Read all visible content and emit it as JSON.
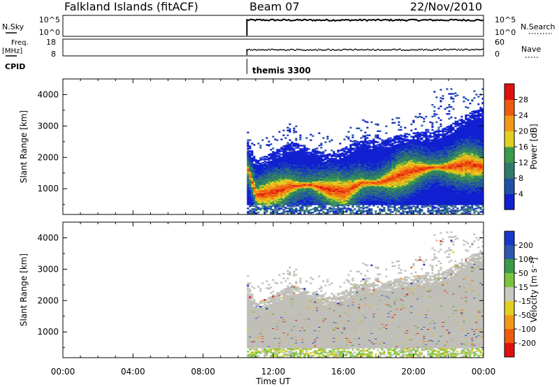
{
  "header": {
    "station": "Falkland Islands (fitACF)",
    "beam": "Beam 07",
    "date": "22/Nov/2010"
  },
  "nsky_panel": {
    "label": "N.Sky",
    "ticks_left": [
      "10^5",
      "10^0"
    ],
    "ticks_right": [
      "10^5",
      "10^0"
    ],
    "right_label": "N.Search"
  },
  "freq_panel": {
    "label_line1": "Freq.",
    "label_line2": "[MHz]",
    "ticks_left": [
      "18",
      "8"
    ],
    "ticks_right": [
      "60",
      "0"
    ],
    "right_label": "Nave"
  },
  "cpid": {
    "label": "CPID",
    "program": "themis 3300"
  },
  "chart_data": [
    {
      "type": "heatmap",
      "title": "",
      "xlabel": "Time UT",
      "ylabel": "Slant Range [km]",
      "xticks": [
        "00:00",
        "04:00",
        "08:00",
        "12:00",
        "16:00",
        "20:00",
        "00:00"
      ],
      "xlim_hours": [
        0,
        24
      ],
      "yticks": [
        1000,
        2000,
        3000,
        4000
      ],
      "ylim": [
        180,
        4500
      ],
      "data_start_hour": 10.5,
      "colorbar": {
        "label": "Power [dB]",
        "ticks": [
          4,
          8,
          12,
          16,
          20,
          24,
          28
        ],
        "range": [
          0,
          32
        ],
        "colors": [
          "#1020d0",
          "#2050a8",
          "#2f7a6a",
          "#3c9a4c",
          "#7cc43a",
          "#e0d020",
          "#f09a18",
          "#ee5a10",
          "#e01010"
        ]
      },
      "ridge_center_km": [
        [
          10.5,
          1600
        ],
        [
          11,
          800
        ],
        [
          12,
          900
        ],
        [
          13,
          1100
        ],
        [
          14,
          1150
        ],
        [
          15,
          1000
        ],
        [
          16,
          900
        ],
        [
          17,
          1200
        ],
        [
          18,
          1200
        ],
        [
          19,
          1400
        ],
        [
          20,
          1600
        ],
        [
          21,
          1700
        ],
        [
          22,
          1700
        ],
        [
          23,
          1800
        ],
        [
          24,
          1700
        ]
      ],
      "echo_top_km": [
        [
          10.5,
          2500
        ],
        [
          11,
          1900
        ],
        [
          12,
          2200
        ],
        [
          13,
          2500
        ],
        [
          14,
          2300
        ],
        [
          15,
          2100
        ],
        [
          16,
          2300
        ],
        [
          17,
          2600
        ],
        [
          18,
          2500
        ],
        [
          19,
          2700
        ],
        [
          20,
          2800
        ],
        [
          21,
          2800
        ],
        [
          22,
          3000
        ],
        [
          23,
          3400
        ],
        [
          24,
          3600
        ]
      ]
    },
    {
      "type": "heatmap",
      "title": "",
      "xlabel": "Time UT",
      "ylabel": "Slant Range [km]",
      "xticks": [
        "00:00",
        "04:00",
        "08:00",
        "12:00",
        "16:00",
        "20:00",
        "00:00"
      ],
      "xlim_hours": [
        0,
        24
      ],
      "yticks": [
        1000,
        2000,
        3000,
        4000
      ],
      "ylim": [
        180,
        4500
      ],
      "data_start_hour": 10.5,
      "colorbar": {
        "label": "Velocity [m s⁻¹]",
        "ticks": [
          200,
          100,
          50,
          15,
          -15,
          -50,
          -100,
          -200
        ],
        "colors": [
          "#1a38c8",
          "#2a58b0",
          "#3a9a4a",
          "#7cc43a",
          "#c8c8c0",
          "#e0d020",
          "#f09a18",
          "#ee5a10",
          "#e01010"
        ]
      },
      "ground_scatter_color": "#c0bfb8"
    }
  ]
}
